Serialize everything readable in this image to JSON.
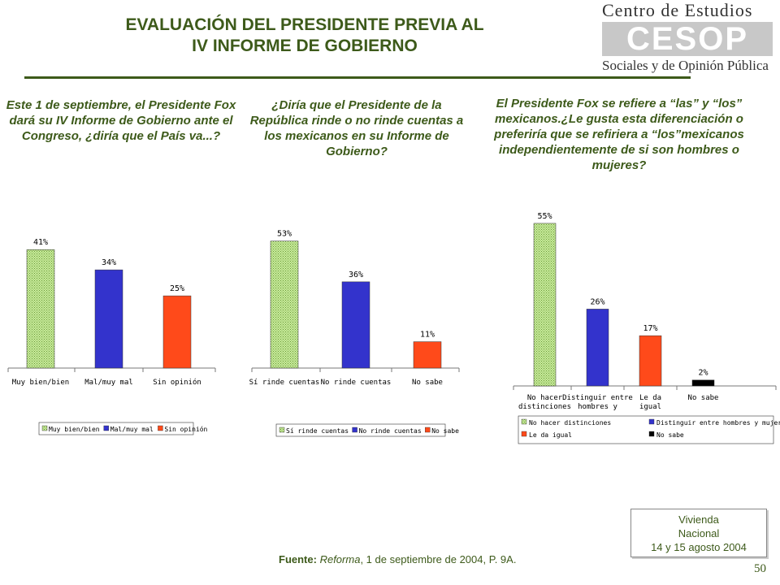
{
  "title": {
    "line1": "EVALUACIÓN DEL PRESIDENTE PREVIA AL",
    "line2": "IV INFORME DE GOBIERNO"
  },
  "logo": {
    "line1": "Centro de Estudios",
    "mark": "CESOP",
    "line2": "Sociales y de Opinión Pública"
  },
  "questions": [
    "Este 1 de septiembre, el Presidente Fox dará su IV Informe de Gobierno ante el Congreso, ¿diría que el País va...?",
    "¿Diría que el Presidente de la República rinde o no rinde cuentas a los mexicanos en su Informe de Gobierno?",
    "El Presidente Fox se refiere a “las” y “los” mexicanos.¿Le gusta esta diferenciación o preferiría que se refiriera a “los”mexicanos independientemente de si son hombres o mujeres?"
  ],
  "colors": {
    "green": "#c8eb9a",
    "blue": "#3333cc",
    "orange": "#ff4a1a",
    "black": "#000000"
  },
  "chart_data": [
    {
      "type": "bar",
      "categories": [
        "Muy bien/bien",
        "Mal/muy mal",
        "Sin opinión"
      ],
      "values": [
        41,
        34,
        25
      ],
      "labels": [
        "41%",
        "34%",
        "25%"
      ],
      "legend": [
        "Muy bien/bien",
        "Mal/muy mal",
        "Sin opinión"
      ],
      "colors": [
        "#c8eb9a",
        "#3333cc",
        "#ff4a1a"
      ],
      "ylim": [
        0,
        45
      ]
    },
    {
      "type": "bar",
      "categories": [
        "Sí rinde cuentas",
        "No rinde cuentas",
        "No sabe"
      ],
      "values": [
        53,
        36,
        11
      ],
      "labels": [
        "53%",
        "36%",
        "11%"
      ],
      "legend": [
        "Sí rinde cuentas",
        "No rinde cuentas",
        "No sabe"
      ],
      "colors": [
        "#c8eb9a",
        "#3333cc",
        "#ff4a1a"
      ],
      "ylim": [
        0,
        58
      ]
    },
    {
      "type": "bar",
      "categories": [
        "No hacer distinciones",
        "Distinguir entre hombres y",
        "Le da igual",
        "No sabe"
      ],
      "values": [
        55,
        26,
        17,
        2
      ],
      "labels": [
        "55%",
        "26%",
        "17%",
        "2%"
      ],
      "legend": [
        "No hacer distinciones",
        "Distinguir entre hombres y mujeres",
        "Le da igual",
        "No sabe"
      ],
      "colors": [
        "#c8eb9a",
        "#3333cc",
        "#ff4a1a",
        "#000000"
      ],
      "ylim": [
        0,
        58
      ]
    }
  ],
  "source": {
    "label": "Fuente:",
    "publication": "Reforma",
    "rest": ", 1 de septiembre de 2004, P. 9A."
  },
  "note": {
    "line1": "Vivienda",
    "line2": "Nacional",
    "line3": "14 y 15 agosto 2004"
  },
  "page_number": "50"
}
